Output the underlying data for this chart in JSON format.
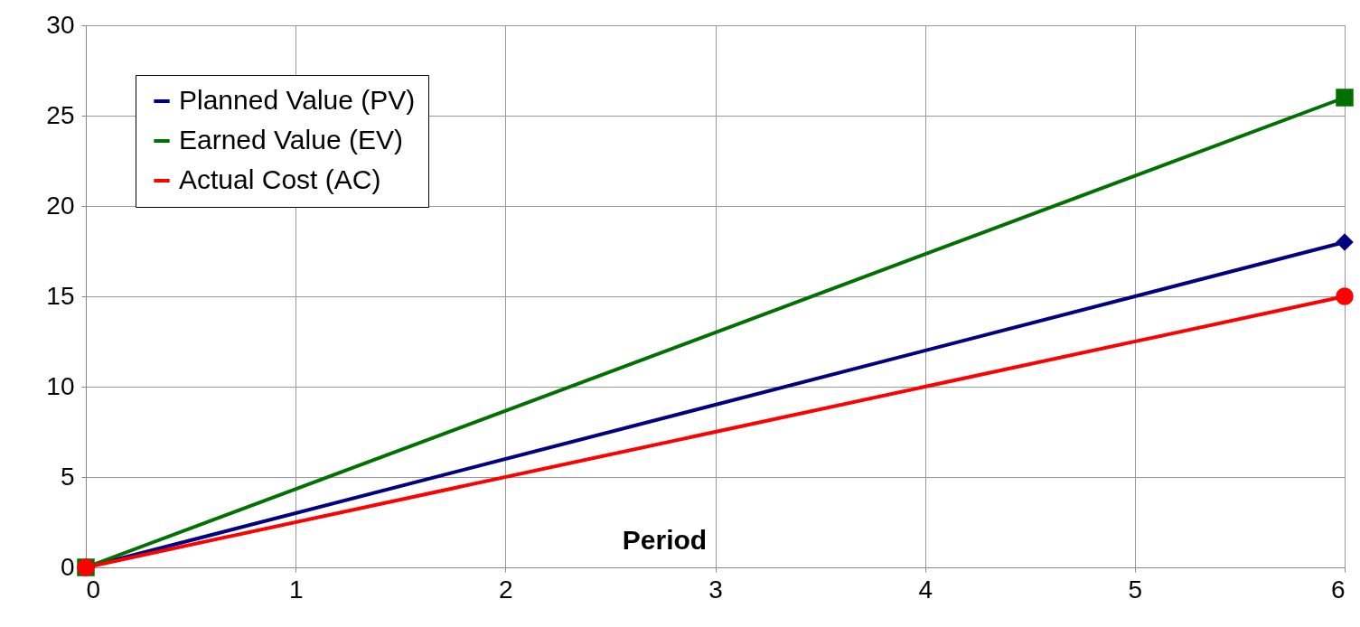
{
  "chart_data": {
    "type": "line",
    "xlabel": "Period",
    "xlim": [
      0,
      6
    ],
    "xticks": [
      0,
      1,
      2,
      3,
      4,
      5,
      6
    ],
    "ylim": [
      0,
      30
    ],
    "yticks": [
      0,
      5,
      10,
      15,
      20,
      25,
      30
    ],
    "x": [
      0,
      6
    ],
    "grid": true,
    "legend": "top left",
    "line_style": "solid",
    "series": [
      {
        "name": "Planned Value (PV)",
        "color": "#000080",
        "values": [
          0,
          18
        ],
        "marker": "diamond"
      },
      {
        "name": "Earned Value (EV)",
        "color": "#007000",
        "values": [
          0,
          26
        ],
        "marker": "square"
      },
      {
        "name": "Actual Cost (AC)",
        "color": "#ff0000",
        "values": [
          0,
          15
        ],
        "marker": "circle"
      }
    ]
  }
}
